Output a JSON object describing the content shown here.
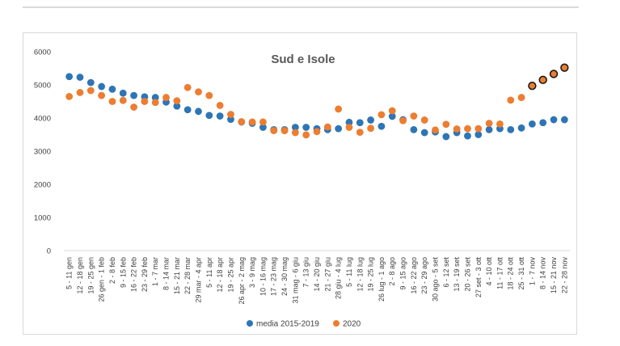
{
  "chart_data": {
    "type": "scatter",
    "title": "Sud e Isole",
    "xlabel": "",
    "ylabel": "",
    "ylim": [
      0,
      6000
    ],
    "yticks": [
      0,
      1000,
      2000,
      3000,
      4000,
      5000,
      6000
    ],
    "grid": false,
    "legend_position": "bottom",
    "categories": [
      "5 - 11 gen",
      "12 - 18 gen",
      "19 - 25 gen",
      "26 gen - 1 feb",
      "2 - 8 feb",
      "9 - 15 feb",
      "16 - 22 feb",
      "23 - 29 feb",
      "1 - 7 mar",
      "8 - 14 mar",
      "15 - 21 mar",
      "22 - 28 mar",
      "29 mar - 4 apr",
      "5 - 11 apr",
      "12 - 18 apr",
      "19 - 25 apr",
      "26 apr - 2 mag",
      "3 - 9 mag",
      "10 - 16 mag",
      "17 - 23 mag",
      "24 - 30 mag",
      "31 mag - 6 giu",
      "7 - 13 giu",
      "14 - 20 giu",
      "21 - 27 giu",
      "28 giu - 4 lug",
      "5 - 11 lug",
      "12 - 18 lug",
      "19 - 25 lug",
      "26 lug - 1 ago",
      "2 - 8 ago",
      "9 - 15 ago",
      "16 - 22 ago",
      "23 - 29 ago",
      "30 ago - 5 set",
      "6 - 12 set",
      "13 - 19 set",
      "20 - 26 set",
      "27 set - 3 ott",
      "4 - 10 ott",
      "11 - 17 ott",
      "18 - 24 ott",
      "25 - 31 ott",
      "1 - 7 nov",
      "8 - 14 nov",
      "15 - 21 nov",
      "22 - 28 nov"
    ],
    "series": [
      {
        "name": "media 2015-2019",
        "color": "#2e75b6",
        "values": [
          5250,
          5230,
          5070,
          4950,
          4870,
          4750,
          4680,
          4640,
          4620,
          4480,
          4360,
          4250,
          4200,
          4080,
          4060,
          3960,
          3880,
          3840,
          3720,
          3650,
          3650,
          3720,
          3720,
          3680,
          3650,
          3680,
          3870,
          3860,
          3940,
          3750,
          4050,
          3950,
          3650,
          3560,
          3580,
          3440,
          3560,
          3460,
          3500,
          3650,
          3680,
          3650,
          3700,
          3820,
          3860,
          3950,
          3950
        ]
      },
      {
        "name": "2020",
        "color": "#ed7d31",
        "values": [
          4650,
          4770,
          4830,
          4680,
          4500,
          4530,
          4330,
          4500,
          4470,
          4620,
          4520,
          4920,
          4790,
          4680,
          4380,
          4110,
          3890,
          3880,
          3880,
          3620,
          3620,
          3560,
          3490,
          3590,
          3730,
          4270,
          3720,
          3570,
          3690,
          4100,
          4220,
          3920,
          4060,
          3940,
          3640,
          3810,
          3670,
          3680,
          3680,
          3840,
          3820,
          4540,
          4620,
          4970,
          5150,
          5330,
          5520
        ],
        "dark_outline_from_index": 43
      }
    ]
  }
}
